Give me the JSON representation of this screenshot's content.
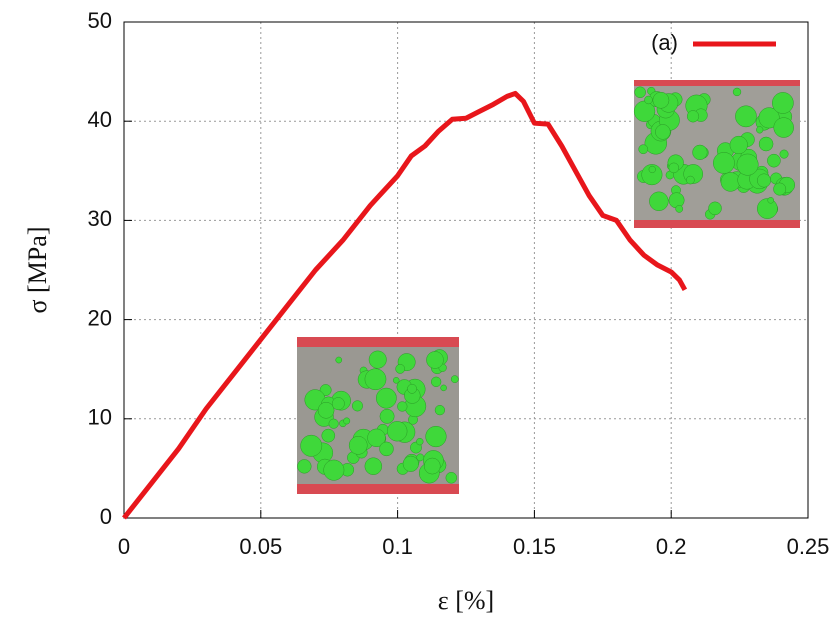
{
  "chart_data": {
    "type": "line",
    "xlabel": "ε [%]",
    "ylabel": "σ [MPa]",
    "x": [
      0,
      0.01,
      0.02,
      0.03,
      0.04,
      0.05,
      0.06,
      0.07,
      0.08,
      0.09,
      0.1,
      0.105,
      0.11,
      0.115,
      0.12,
      0.125,
      0.13,
      0.135,
      0.14,
      0.143,
      0.146,
      0.15,
      0.155,
      0.16,
      0.165,
      0.17,
      0.175,
      0.18,
      0.185,
      0.19,
      0.195,
      0.2,
      0.203,
      0.205
    ],
    "series": [
      {
        "name": "(a)",
        "color": "#e8161b",
        "values": [
          0,
          3.5,
          7,
          11,
          14.5,
          18,
          21.5,
          25,
          28,
          31.5,
          34.5,
          36.5,
          37.5,
          39,
          40.2,
          40.3,
          41,
          41.7,
          42.5,
          42.8,
          42,
          39.8,
          39.7,
          37.5,
          35,
          32.5,
          30.5,
          30,
          28,
          26.5,
          25.5,
          24.8,
          24,
          23
        ]
      }
    ],
    "xlim": [
      0,
      0.25
    ],
    "xticks": [
      0,
      0.05,
      0.1,
      0.15,
      0.2,
      0.25
    ],
    "ylim": [
      0,
      50
    ],
    "yticks": [
      0,
      10,
      20,
      30,
      40,
      50
    ],
    "grid": true,
    "legend": "upper right"
  }
}
